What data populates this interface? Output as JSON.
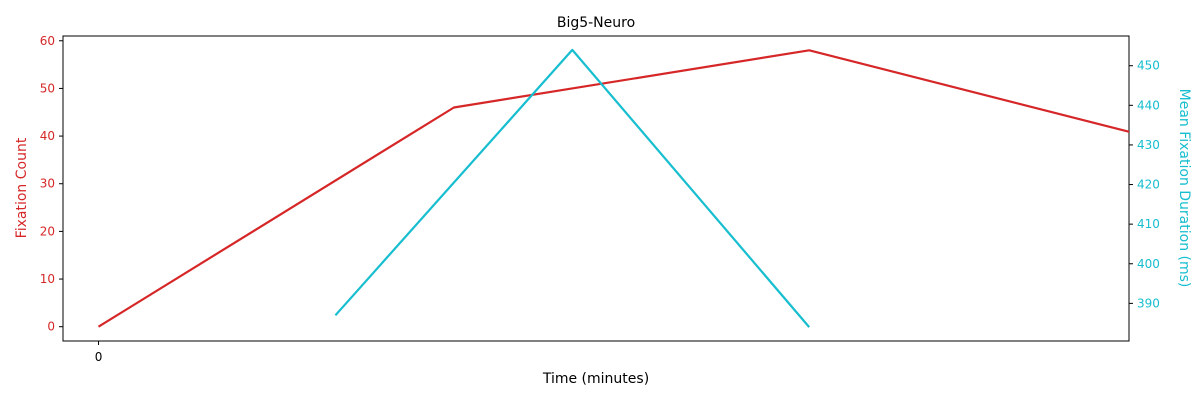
{
  "chart_data": {
    "type": "line",
    "title": "Big5-Neuro",
    "xlabel": "Time (minutes)",
    "x_ticks": [
      0
    ],
    "x_range": [
      -0.15,
      4.35
    ],
    "y_left": {
      "label": "Fixation Count",
      "color": "#d62728",
      "range": [
        -3,
        61
      ],
      "ticks": [
        0,
        10,
        20,
        30,
        40,
        50,
        60
      ]
    },
    "y_right": {
      "label": "Mean Fixation Duration (ms)",
      "color": "#17becf",
      "range": [
        380.5,
        457.5
      ],
      "ticks": [
        390,
        400,
        410,
        420,
        430,
        440,
        450
      ]
    },
    "series": [
      {
        "axis": "left",
        "color": "#d62728",
        "x": [
          0,
          1.5,
          3.0,
          4.5
        ],
        "values": [
          0,
          46,
          58,
          39
        ]
      },
      {
        "axis": "right",
        "color": "#17becf",
        "x": [
          1.0,
          2.0,
          3.0
        ],
        "values": [
          387,
          454,
          384
        ]
      }
    ],
    "grid": false,
    "legend": "none"
  }
}
